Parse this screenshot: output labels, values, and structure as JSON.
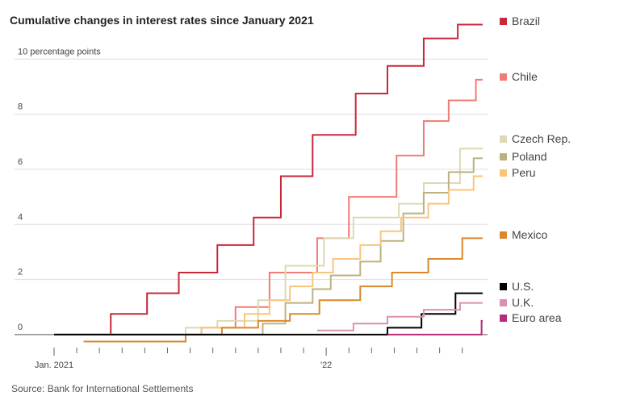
{
  "chart_data": {
    "type": "step-line",
    "title": "Cumulative changes in interest rates since January 2021",
    "source": "Source: Bank for International Settlements",
    "xlim": [
      0,
      18.9
    ],
    "xticks": [
      {
        "value": 0,
        "label": "Jan. 2021"
      },
      {
        "value": 12,
        "label": "'22"
      }
    ],
    "xminorticks": [
      1,
      2,
      3,
      4,
      5,
      6,
      7,
      8,
      9,
      10,
      11,
      13,
      14,
      15,
      16,
      17,
      18
    ],
    "ylim": [
      -0.5,
      11.5
    ],
    "yticks": [
      0,
      2,
      4,
      6,
      8,
      {
        "value": 10,
        "label": "10 percentage points"
      }
    ],
    "grid": true,
    "series": [
      {
        "name": "Brazil",
        "color": "#c8283a",
        "x": [
          0,
          2.5,
          4.1,
          5.5,
          7.2,
          8.8,
          10,
          11.4,
          13.3,
          14.7,
          16.3,
          17.8,
          18.9
        ],
        "values": [
          0,
          0.75,
          1.5,
          2.25,
          3.25,
          4.25,
          5.75,
          7.25,
          8.75,
          9.75,
          10.75,
          11.25,
          11.25
        ]
      },
      {
        "name": "Chile",
        "color": "#f07c74",
        "x": [
          0,
          6.5,
          8,
          9.5,
          11.6,
          13,
          15.1,
          16.3,
          17.4,
          18.6,
          18.9
        ],
        "values": [
          0,
          0.25,
          1,
          2.25,
          3.5,
          5,
          6.5,
          7.75,
          8.5,
          9.25,
          9.25
        ]
      },
      {
        "name": "Czech Rep.",
        "color": "#ddd9b4",
        "x": [
          0,
          5.8,
          7.2,
          9,
          10.2,
          11.9,
          13.2,
          15.2,
          16.3,
          17.9,
          18.9
        ],
        "values": [
          0,
          0.25,
          0.5,
          1.25,
          2.5,
          3.5,
          4.25,
          4.75,
          5.5,
          6.75,
          6.75
        ]
      },
      {
        "name": "Poland",
        "color": "#bdb27f",
        "x": [
          0,
          9.2,
          10.2,
          11.4,
          12.2,
          13.5,
          14.4,
          15.4,
          16.3,
          17.4,
          18.5,
          18.9
        ],
        "values": [
          0,
          0.4,
          1.15,
          1.65,
          2.15,
          2.65,
          3.4,
          4.4,
          5.15,
          5.9,
          6.4,
          6.4
        ]
      },
      {
        "name": "Peru",
        "color": "#fac47c",
        "x": [
          0,
          6.5,
          8.4,
          9.5,
          10.4,
          11.4,
          12.3,
          13.5,
          14.4,
          15.3,
          16.5,
          17.4,
          18.5,
          18.9
        ],
        "values": [
          0,
          0.25,
          0.75,
          1.25,
          1.75,
          2.25,
          2.75,
          3.25,
          3.75,
          4.25,
          4.75,
          5.25,
          5.75,
          5.75
        ]
      },
      {
        "name": "Mexico",
        "color": "#d9892b",
        "x": [
          1.3,
          5.8,
          7.4,
          9,
          10.4,
          11.7,
          13.5,
          14.9,
          16.5,
          18,
          18.9
        ],
        "values": [
          -0.25,
          0,
          0.25,
          0.5,
          0.75,
          1.25,
          1.75,
          2.25,
          2.75,
          3.5,
          3.5
        ]
      },
      {
        "name": "U.S.",
        "color": "#000000",
        "x": [
          0,
          14.7,
          16.2,
          17.7,
          18.9
        ],
        "values": [
          0,
          0.25,
          0.75,
          1.5,
          1.5
        ]
      },
      {
        "name": "U.K.",
        "color": "#d891b4",
        "x": [
          11.6,
          13.2,
          14.7,
          16.3,
          17.9,
          18.9
        ],
        "values": [
          0.15,
          0.4,
          0.65,
          0.9,
          1.15,
          1.15
        ]
      },
      {
        "name": "Euro area",
        "color": "#b82a7b",
        "x": [
          14.7,
          18.85,
          18.9
        ],
        "values": [
          0,
          0.5,
          0.5
        ]
      }
    ]
  }
}
